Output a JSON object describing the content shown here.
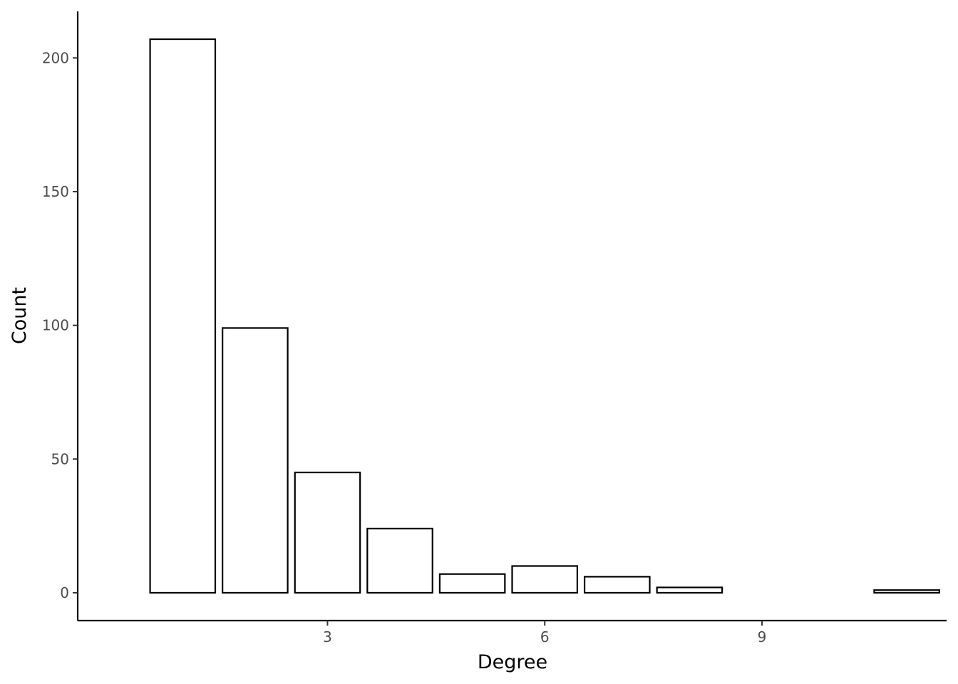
{
  "chart_data": {
    "type": "bar",
    "title": "",
    "xlabel": "Degree",
    "ylabel": "Count",
    "x": [
      1,
      2,
      3,
      4,
      5,
      6,
      7,
      8,
      11
    ],
    "values": [
      207,
      99,
      45,
      24,
      7,
      10,
      6,
      2,
      1
    ],
    "xlim": [
      -0.45,
      11.55
    ],
    "ylim": [
      -10.4,
      217.4
    ],
    "xticks": [
      3,
      6,
      9
    ],
    "yticks": [
      0,
      50,
      100,
      150,
      200
    ],
    "grid": false,
    "legend": "none",
    "bar_fill": "#ffffff",
    "bar_stroke": "#000000"
  }
}
